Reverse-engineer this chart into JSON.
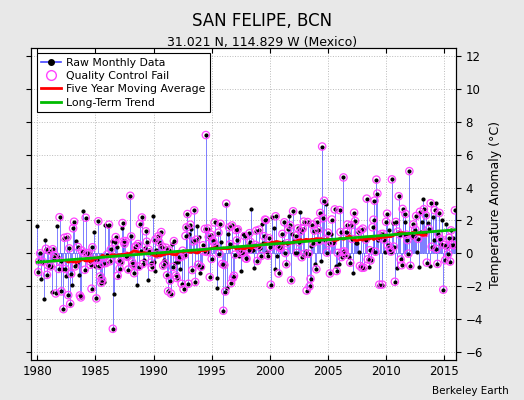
{
  "title": "SAN FELIPE, BCN",
  "subtitle": "31.021 N, 114.829 W (Mexico)",
  "ylabel": "Temperature Anomaly (°C)",
  "credit": "Berkeley Earth",
  "xlim": [
    1979.5,
    2016.0
  ],
  "ylim": [
    -6.5,
    12.5
  ],
  "yticks": [
    -6,
    -4,
    -2,
    0,
    2,
    4,
    6,
    8,
    10,
    12
  ],
  "xticks": [
    1980,
    1985,
    1990,
    1995,
    2000,
    2005,
    2010,
    2015
  ],
  "bg_color": "#e8e8e8",
  "plot_bg_color": "#ffffff",
  "line_color": "#4444ff",
  "dot_color": "#000000",
  "qc_color": "#ff44ff",
  "moving_avg_color": "#ff0000",
  "trend_color": "#00bb00",
  "trend_slope": 0.055,
  "trend_intercept_at_1980": -0.55,
  "noise_std": 1.3,
  "seed": 7,
  "n_qc_per_month": 1,
  "figsize": [
    5.24,
    4.0
  ],
  "dpi": 100
}
